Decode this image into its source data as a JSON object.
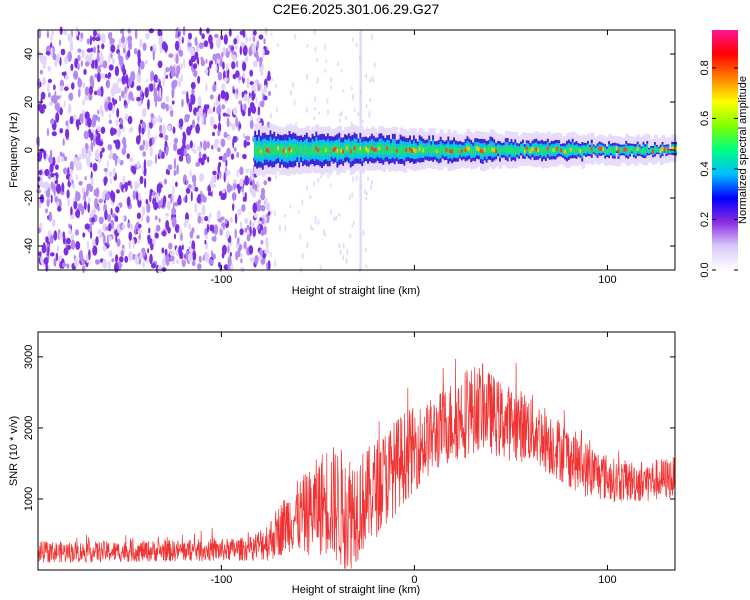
{
  "title": "C2E6.2025.301.06.29.G27",
  "chart_data": [
    {
      "type": "heatmap",
      "xlabel": "Height of straight line (km)",
      "ylabel": "Frequency (Hz)",
      "xlim": [
        -195,
        135
      ],
      "ylim": [
        -50,
        50
      ],
      "xticks": [
        -100,
        0,
        100
      ],
      "xtick_labels": [
        "-100",
        "",
        "100"
      ],
      "yticks": [
        -40,
        -20,
        0,
        20,
        40
      ],
      "ytick_labels": [
        "-40",
        "-20",
        "0",
        "20",
        "40"
      ],
      "colorbar": {
        "label": "Normalized spectral amplitude",
        "range": [
          0,
          0.95
        ],
        "ticks": [
          0.0,
          0.2,
          0.4,
          0.6,
          0.8
        ],
        "tick_labels": [
          "0.0",
          "0.2",
          "0.4",
          "0.6",
          "0.8"
        ],
        "colors": [
          "#ffffff",
          "#d8c8f8",
          "#8a2be2",
          "#0000ff",
          "#00bfff",
          "#00ff80",
          "#7fff00",
          "#ffff00",
          "#ff8000",
          "#ff0000",
          "#ff1493"
        ]
      },
      "noise_region_xmax": -75,
      "signal_track": {
        "x_start": -83,
        "x_end": 135,
        "center_freq": 0,
        "half_width_near": 7,
        "half_width_far": 2
      },
      "grid": false
    },
    {
      "type": "line",
      "xlabel": "Height of straight line (km)",
      "ylabel": "SNR (10 * v/v)",
      "xlim": [
        -195,
        135
      ],
      "ylim": [
        0,
        3350
      ],
      "xticks": [
        -100,
        0,
        100
      ],
      "xtick_labels": [
        "-100",
        "0",
        "100"
      ],
      "yticks": [
        1000,
        2000,
        3000
      ],
      "ytick_labels": [
        "1000",
        "2000",
        "3000"
      ],
      "series": [
        {
          "color": "#f03232",
          "envelope": {
            "x": [
              -195,
              -150,
              -100,
              -85,
              -75,
              -65,
              -55,
              -45,
              -35,
              -25,
              -15,
              -5,
              5,
              15,
              25,
              35,
              45,
              60,
              75,
              90,
              105,
              120,
              135
            ],
            "mean": [
              250,
              260,
              280,
              300,
              420,
              700,
              800,
              1000,
              800,
              1000,
              1300,
              1600,
              1800,
              2000,
              2200,
              2300,
              2100,
              2000,
              1700,
              1400,
              1250,
              1250,
              1300
            ],
            "spread": [
              150,
              150,
              160,
              170,
              300,
              450,
              600,
              800,
              900,
              700,
              700,
              650,
              550,
              550,
              650,
              600,
              550,
              500,
              450,
              400,
              300,
              300,
              300
            ]
          }
        }
      ],
      "grid": false
    }
  ]
}
